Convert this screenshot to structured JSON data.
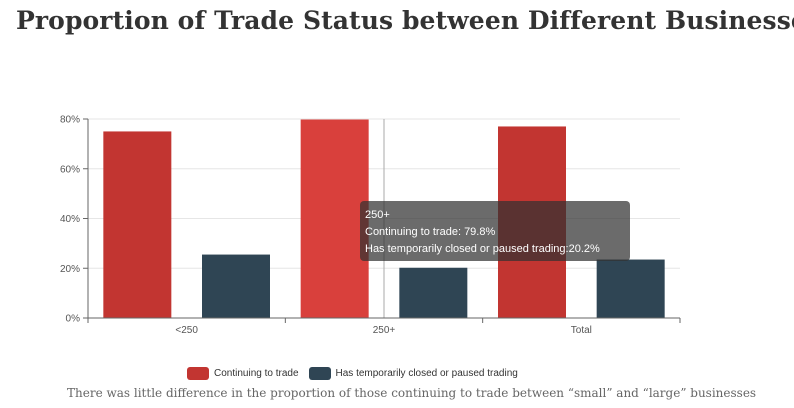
{
  "title": "Proportion of Trade Status between Different Businesses",
  "caption": "There was little difference in the proportion of those continuing to trade between “small” and “large” businesses",
  "tooltip": {
    "category": "250+",
    "line1": "Continuing to trade: 79.8%",
    "line2": "Has temporarily closed or paused trading:20.2%"
  },
  "legend": {
    "items": [
      {
        "label": "Continuing to trade",
        "color": "#c23531"
      },
      {
        "label": "Has temporarily closed or paused trading",
        "color": "#2f4554"
      }
    ]
  },
  "chart_data": {
    "type": "bar",
    "categories": [
      "<250",
      "250+",
      "Total"
    ],
    "series": [
      {
        "name": "Continuing to trade",
        "values": [
          75,
          79.8,
          77
        ],
        "color": "#c23531"
      },
      {
        "name": "Has temporarily closed or paused trading",
        "values": [
          25.5,
          20.2,
          23.5
        ],
        "color": "#2f4554"
      }
    ],
    "ylim": [
      0,
      80
    ],
    "yticks": [
      0,
      20,
      40,
      60,
      80
    ],
    "ytick_labels": [
      "0%",
      "20%",
      "40%",
      "60%",
      "80%"
    ],
    "grid": true,
    "legend_position": "bottom",
    "highlighted_category": "250+",
    "highlight_color": "#d9403c"
  }
}
